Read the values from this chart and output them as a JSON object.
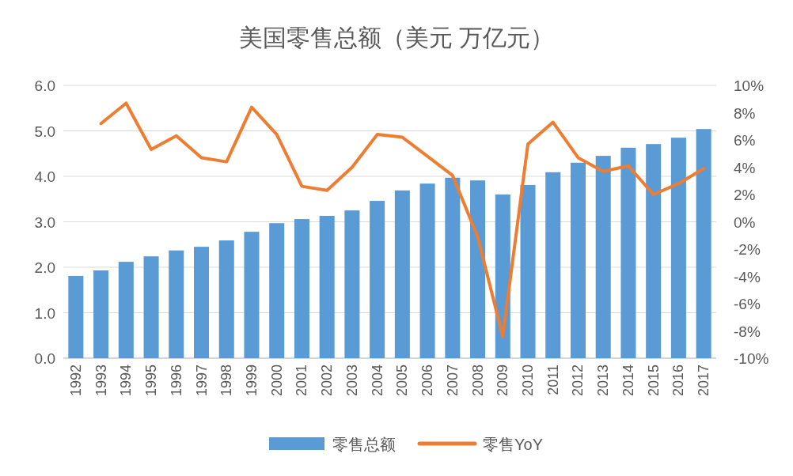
{
  "chart_data": {
    "type": "bar",
    "title": "美国零售总额（美元 万亿元）",
    "categories": [
      "1992",
      "1993",
      "1994",
      "1995",
      "1996",
      "1997",
      "1998",
      "1999",
      "2000",
      "2001",
      "2002",
      "2003",
      "2004",
      "2005",
      "2006",
      "2007",
      "2008",
      "2009",
      "2010",
      "2011",
      "2012",
      "2013",
      "2014",
      "2015",
      "2016",
      "2017"
    ],
    "series": [
      {
        "name": "零售总额",
        "color": "#5b9bd5",
        "values": [
          1.81,
          1.93,
          2.12,
          2.24,
          2.37,
          2.45,
          2.59,
          2.78,
          2.97,
          3.06,
          3.13,
          3.25,
          3.46,
          3.69,
          3.84,
          3.97,
          3.91,
          3.6,
          3.81,
          4.09,
          4.3,
          4.45,
          4.63,
          4.71,
          4.85,
          5.04
        ]
      },
      {
        "name": "零售YoY",
        "type": "line",
        "axis": "y2",
        "color": "#ed7d31",
        "values": [
          null,
          7.2,
          8.7,
          5.3,
          6.3,
          4.7,
          4.4,
          8.4,
          6.4,
          2.6,
          2.3,
          4.0,
          6.4,
          6.2,
          4.8,
          3.4,
          -1.1,
          -8.4,
          5.7,
          7.3,
          4.7,
          3.7,
          4.1,
          2.0,
          2.8,
          3.9
        ]
      }
    ],
    "ylim": [
      0,
      6
    ],
    "yticks": [
      {
        "value": 0,
        "label": "0.0"
      },
      {
        "value": 1,
        "label": "1.0"
      },
      {
        "value": 2,
        "label": "2.0"
      },
      {
        "value": 3,
        "label": "3.0"
      },
      {
        "value": 4,
        "label": "4.0"
      },
      {
        "value": 5,
        "label": "5.0"
      },
      {
        "value": 6,
        "label": "6.0"
      }
    ],
    "y2lim": [
      -10,
      10
    ],
    "y2ticks": [
      {
        "value": -10,
        "label": "-10%"
      },
      {
        "value": -8,
        "label": "-8%"
      },
      {
        "value": -6,
        "label": "-6%"
      },
      {
        "value": -4,
        "label": "-4%"
      },
      {
        "value": -2,
        "label": "-2%"
      },
      {
        "value": 0,
        "label": "0%"
      },
      {
        "value": 2,
        "label": "2%"
      },
      {
        "value": 4,
        "label": "4%"
      },
      {
        "value": 6,
        "label": "6%"
      },
      {
        "value": 8,
        "label": "8%"
      },
      {
        "value": 10,
        "label": "10%"
      }
    ],
    "grid": "y",
    "legend": "bottom",
    "marker": "none",
    "line_style": "solid"
  }
}
